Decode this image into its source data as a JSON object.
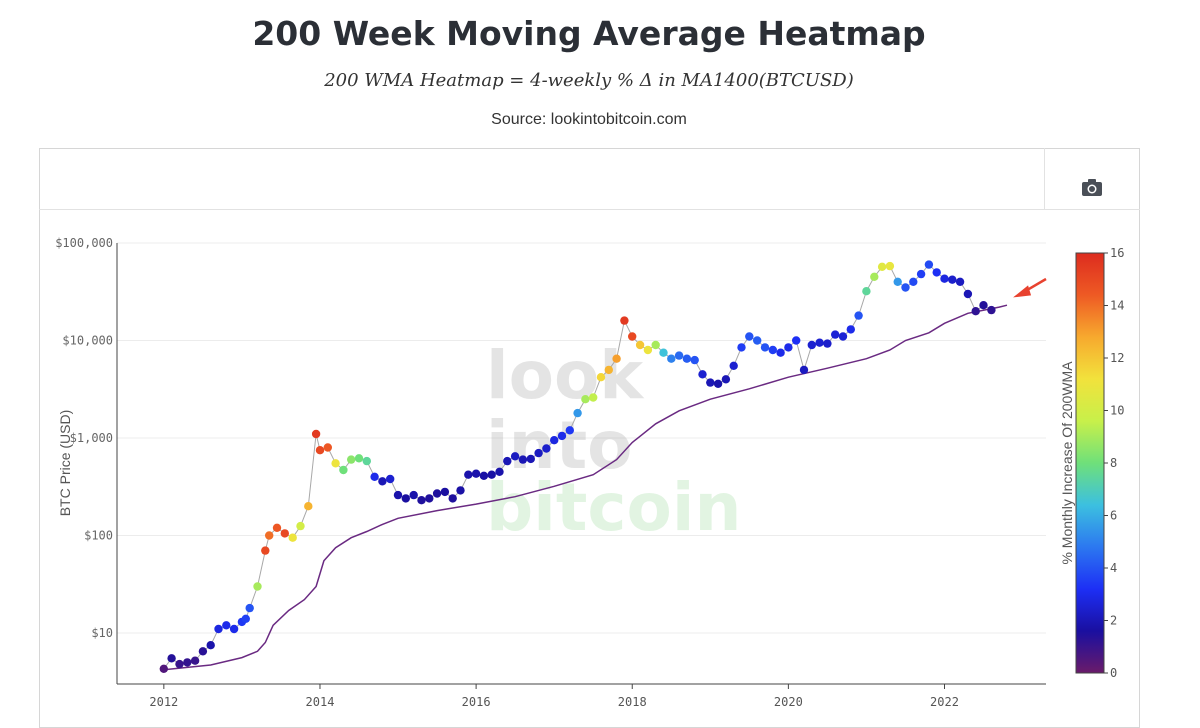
{
  "header": {
    "title": "200 Week Moving Average Heatmap",
    "formula": "200 WMA Heatmap = 4-weekly % Δ in MA1400(BTCUSD)",
    "source": "Source: lookintobitcoin.com"
  },
  "toolbar": {
    "camera_icon": "camera-icon"
  },
  "watermark": {
    "line1": "look",
    "line2": "into",
    "line3": "bitcoin"
  },
  "chart_data": {
    "type": "scatter",
    "ylabel": "BTC Price (USD)",
    "y_scale": "log",
    "ylim": [
      3,
      100000
    ],
    "xlim": [
      2011.4,
      2023.3
    ],
    "y_ticks": [
      {
        "value": 10,
        "label": "$10"
      },
      {
        "value": 100,
        "label": "$100"
      },
      {
        "value": 1000,
        "label": "$1,000"
      },
      {
        "value": 10000,
        "label": "$10,000"
      },
      {
        "value": 100000,
        "label": "$100,000"
      }
    ],
    "x_ticks": [
      {
        "value": 2012,
        "label": "2012"
      },
      {
        "value": 2014,
        "label": "2014"
      },
      {
        "value": 2016,
        "label": "2016"
      },
      {
        "value": 2018,
        "label": "2018"
      },
      {
        "value": 2020,
        "label": "2020"
      },
      {
        "value": 2022,
        "label": "2022"
      }
    ],
    "colorbar": {
      "title": "% Monthly Increase Of 200WMA",
      "range": [
        0,
        16
      ],
      "ticks": [
        "0",
        "2",
        "4",
        "6",
        "8",
        "10",
        "12",
        "14",
        "16"
      ]
    },
    "annotation": {
      "type": "arrow",
      "points_to": [
        2022.75,
        24000
      ],
      "color": "#e8422f"
    },
    "wma_line": [
      [
        2012.0,
        4.2
      ],
      [
        2012.6,
        4.7
      ],
      [
        2013.0,
        5.6
      ],
      [
        2013.2,
        6.5
      ],
      [
        2013.3,
        8
      ],
      [
        2013.4,
        12
      ],
      [
        2013.6,
        17
      ],
      [
        2013.8,
        22
      ],
      [
        2013.95,
        30
      ],
      [
        2014.05,
        55
      ],
      [
        2014.2,
        75
      ],
      [
        2014.4,
        95
      ],
      [
        2014.6,
        110
      ],
      [
        2014.8,
        130
      ],
      [
        2015.0,
        150
      ],
      [
        2015.5,
        180
      ],
      [
        2016.0,
        210
      ],
      [
        2016.5,
        250
      ],
      [
        2017.0,
        320
      ],
      [
        2017.5,
        420
      ],
      [
        2017.8,
        600
      ],
      [
        2018.0,
        900
      ],
      [
        2018.3,
        1400
      ],
      [
        2018.6,
        1900
      ],
      [
        2019.0,
        2500
      ],
      [
        2019.5,
        3200
      ],
      [
        2020.0,
        4200
      ],
      [
        2020.5,
        5200
      ],
      [
        2021.0,
        6500
      ],
      [
        2021.3,
        8000
      ],
      [
        2021.5,
        10000
      ],
      [
        2021.8,
        12000
      ],
      [
        2022.0,
        15000
      ],
      [
        2022.3,
        19000
      ],
      [
        2022.7,
        22000
      ],
      [
        2022.8,
        23000
      ]
    ],
    "price_points": [
      [
        2012.0,
        4.3,
        0.5
      ],
      [
        2012.1,
        5.5,
        1.4
      ],
      [
        2012.2,
        4.8,
        1.0
      ],
      [
        2012.3,
        5.0,
        1.1
      ],
      [
        2012.4,
        5.2,
        1.0
      ],
      [
        2012.5,
        6.5,
        1.3
      ],
      [
        2012.6,
        7.5,
        1.8
      ],
      [
        2012.7,
        11,
        2.8
      ],
      [
        2012.8,
        12,
        3.0
      ],
      [
        2012.9,
        11,
        3.0
      ],
      [
        2013.0,
        13,
        3.4
      ],
      [
        2013.05,
        14,
        3.6
      ],
      [
        2013.1,
        18,
        4.0
      ],
      [
        2013.2,
        30,
        9.0
      ],
      [
        2013.3,
        70,
        15.0
      ],
      [
        2013.35,
        100,
        14.0
      ],
      [
        2013.45,
        120,
        14.5
      ],
      [
        2013.55,
        105,
        15.0
      ],
      [
        2013.65,
        95,
        11.0
      ],
      [
        2013.75,
        125,
        10.0
      ],
      [
        2013.85,
        200,
        12.5
      ],
      [
        2013.95,
        1100,
        15.5
      ],
      [
        2014.0,
        750,
        15.0
      ],
      [
        2014.1,
        800,
        14.5
      ],
      [
        2014.2,
        550,
        11.0
      ],
      [
        2014.3,
        470,
        8.0
      ],
      [
        2014.4,
        600,
        8.5
      ],
      [
        2014.5,
        620,
        8.0
      ],
      [
        2014.6,
        580,
        7.5
      ],
      [
        2014.7,
        400,
        3.0
      ],
      [
        2014.8,
        360,
        2.0
      ],
      [
        2014.9,
        380,
        2.5
      ],
      [
        2015.0,
        260,
        1.8
      ],
      [
        2015.1,
        240,
        1.6
      ],
      [
        2015.2,
        260,
        1.8
      ],
      [
        2015.3,
        230,
        1.5
      ],
      [
        2015.4,
        240,
        1.5
      ],
      [
        2015.5,
        270,
        1.5
      ],
      [
        2015.6,
        280,
        1.6
      ],
      [
        2015.7,
        240,
        1.5
      ],
      [
        2015.8,
        290,
        1.7
      ],
      [
        2015.9,
        420,
        1.8
      ],
      [
        2016.0,
        430,
        1.8
      ],
      [
        2016.1,
        410,
        1.7
      ],
      [
        2016.2,
        420,
        1.7
      ],
      [
        2016.3,
        450,
        1.8
      ],
      [
        2016.4,
        580,
        2.0
      ],
      [
        2016.5,
        650,
        2.2
      ],
      [
        2016.6,
        600,
        2.0
      ],
      [
        2016.7,
        610,
        2.0
      ],
      [
        2016.8,
        700,
        2.2
      ],
      [
        2016.9,
        780,
        2.4
      ],
      [
        2017.0,
        950,
        2.8
      ],
      [
        2017.1,
        1050,
        3.0
      ],
      [
        2017.2,
        1200,
        3.4
      ],
      [
        2017.3,
        1800,
        5.5
      ],
      [
        2017.4,
        2500,
        9.0
      ],
      [
        2017.5,
        2600,
        9.5
      ],
      [
        2017.6,
        4200,
        11.5
      ],
      [
        2017.7,
        5000,
        12.5
      ],
      [
        2017.8,
        6500,
        13.0
      ],
      [
        2017.9,
        16000,
        15.5
      ],
      [
        2018.0,
        11000,
        15.0
      ],
      [
        2018.1,
        9000,
        12.0
      ],
      [
        2018.2,
        8000,
        11.0
      ],
      [
        2018.3,
        9000,
        9.0
      ],
      [
        2018.4,
        7500,
        6.5
      ],
      [
        2018.5,
        6500,
        5.0
      ],
      [
        2018.6,
        7000,
        4.5
      ],
      [
        2018.7,
        6500,
        4.2
      ],
      [
        2018.8,
        6300,
        4.0
      ],
      [
        2018.9,
        4500,
        2.5
      ],
      [
        2019.0,
        3700,
        2.0
      ],
      [
        2019.1,
        3600,
        1.8
      ],
      [
        2019.2,
        4000,
        2.0
      ],
      [
        2019.3,
        5500,
        2.5
      ],
      [
        2019.4,
        8500,
        3.5
      ],
      [
        2019.5,
        11000,
        4.0
      ],
      [
        2019.6,
        10000,
        4.2
      ],
      [
        2019.7,
        8500,
        4.0
      ],
      [
        2019.8,
        8000,
        3.5
      ],
      [
        2019.9,
        7500,
        3.0
      ],
      [
        2020.0,
        8500,
        3.0
      ],
      [
        2020.1,
        10000,
        3.2
      ],
      [
        2020.2,
        5000,
        2.2
      ],
      [
        2020.3,
        9000,
        2.5
      ],
      [
        2020.4,
        9500,
        2.5
      ],
      [
        2020.5,
        9300,
        2.4
      ],
      [
        2020.6,
        11500,
        2.6
      ],
      [
        2020.7,
        11000,
        2.6
      ],
      [
        2020.8,
        13000,
        3.0
      ],
      [
        2020.9,
        18000,
        4.0
      ],
      [
        2021.0,
        32000,
        7.5
      ],
      [
        2021.1,
        45000,
        9.0
      ],
      [
        2021.2,
        57000,
        10.5
      ],
      [
        2021.3,
        58000,
        10.8
      ],
      [
        2021.4,
        40000,
        5.5
      ],
      [
        2021.5,
        35000,
        4.0
      ],
      [
        2021.6,
        40000,
        3.8
      ],
      [
        2021.7,
        48000,
        3.5
      ],
      [
        2021.8,
        60000,
        3.8
      ],
      [
        2021.9,
        50000,
        3.2
      ],
      [
        2022.0,
        43000,
        2.8
      ],
      [
        2022.1,
        42000,
        2.4
      ],
      [
        2022.2,
        40000,
        2.2
      ],
      [
        2022.3,
        30000,
        2.0
      ],
      [
        2022.4,
        20000,
        1.2
      ],
      [
        2022.5,
        23000,
        1.4
      ],
      [
        2022.6,
        20500,
        1.2
      ]
    ]
  }
}
